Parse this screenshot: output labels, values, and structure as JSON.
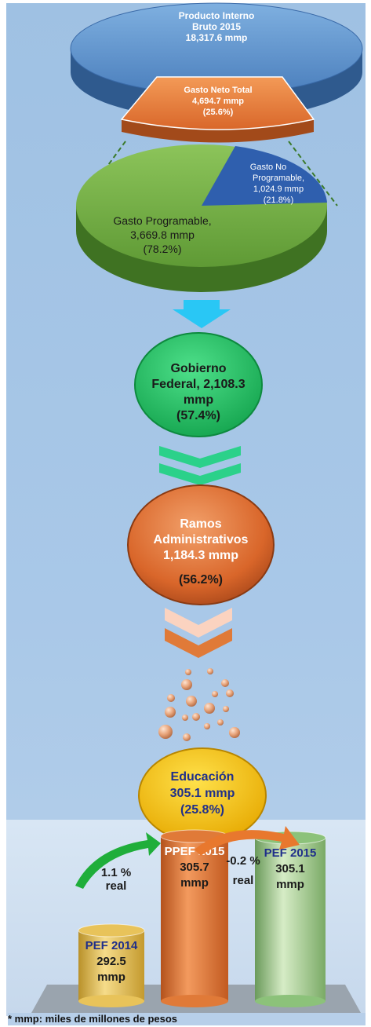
{
  "pib": {
    "line1": "Producto Interno",
    "line2": "Bruto 2015",
    "value": "18,317.6  mmp"
  },
  "gasto_neto": {
    "label": "Gasto Neto Total",
    "value": "4,694.7 mmp",
    "pct": "(25.6%)"
  },
  "gasto_programable": {
    "line1": "Gasto Programable,",
    "value": "3,669.8 mmp",
    "pct": "(78.2%)"
  },
  "gasto_no_programable": {
    "line1": "Gasto No",
    "line2": "Programable,",
    "value": "1,024.9 mmp",
    "pct": "(21.8%)"
  },
  "gobierno_federal": {
    "line1": "Gobierno",
    "line2": "Federal, 2,108.3",
    "line3": "mmp",
    "pct": "(57.4%)"
  },
  "ramos": {
    "line1": "Ramos",
    "line2": "Administrativos",
    "value": "1,184.3 mmp",
    "pct": "(56.2%)"
  },
  "educacion": {
    "line1": "Educación",
    "value": "305.1 mmp",
    "pct": "(25.8%)"
  },
  "growth_up": {
    "value": "1.1 %",
    "label": "real"
  },
  "growth_down": {
    "value": "-0.2 %",
    "label": "real"
  },
  "footnote": "* mmp: miles de millones de pesos",
  "chart_data": {
    "type": "bar",
    "categories": [
      "PEF 2014",
      "PPEF 2015",
      "PEF 2015"
    ],
    "values": [
      292.5,
      305.7,
      305.1
    ],
    "value_labels": [
      "292.5",
      "305.7",
      "305.1"
    ],
    "unit_label": "mmp",
    "colors": [
      "#e8c35a",
      "#e07a38",
      "#8cc27a"
    ]
  },
  "colors": {
    "panel": "#a9c8e8",
    "pie_blue": "#5b8fc8",
    "pie_orange": "#e07a38",
    "pie_green": "#6ea544",
    "pie_navy": "#2f5fae",
    "circle_green": "#22c466",
    "circle_orange": "#d96a2a",
    "circle_yellow": "#f4c20a",
    "arrow_cyan": "#29c7f5"
  }
}
